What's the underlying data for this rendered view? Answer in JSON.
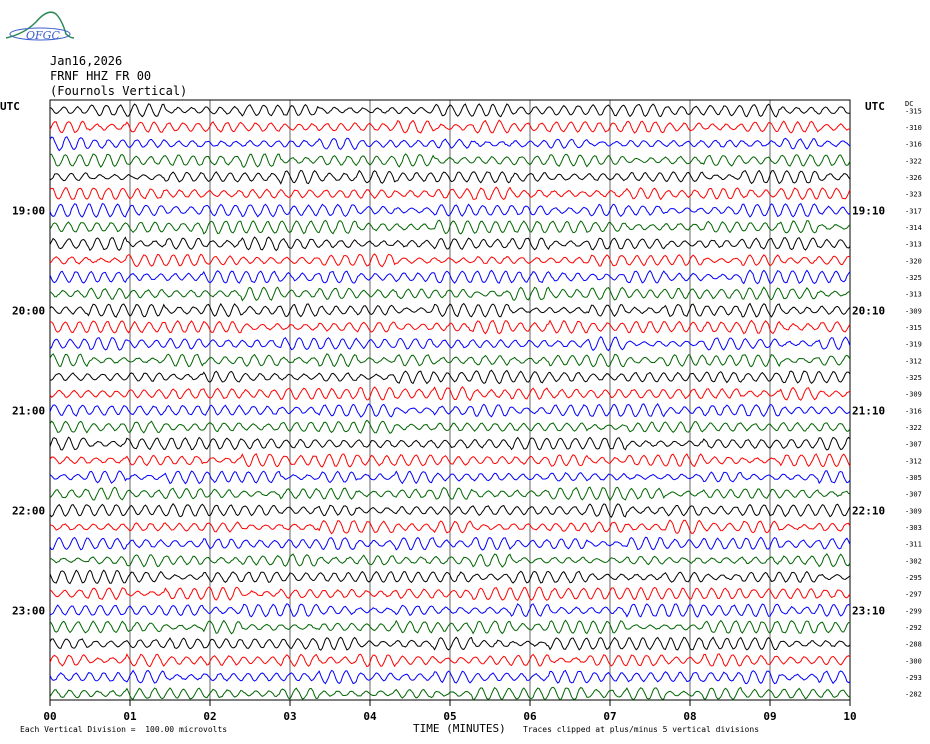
{
  "logo": {
    "text": "OFGC"
  },
  "header": {
    "date": "Jan16,2026",
    "station": "FRNF HHZ FR 00",
    "location": "(Fournols Vertical)"
  },
  "left_axis_label": "UTC",
  "right_axis_label": "UTC",
  "dc_label": "DC",
  "footer": {
    "scale_note": "Each Vertical Division =  100.00 microvolts",
    "xlabel": "TIME (MINUTES)",
    "clip_note": "Traces clipped at plus/minus 5 vertical divisions"
  },
  "chart_data": {
    "type": "line",
    "title": "FRNF HHZ FR 00",
    "xlabel": "TIME (MINUTES)",
    "xlim": [
      0,
      10
    ],
    "x_ticks": [
      "00",
      "01",
      "02",
      "03",
      "04",
      "05",
      "06",
      "07",
      "08",
      "09",
      "10"
    ],
    "left_time_labels": [
      {
        "row": 6,
        "label": "19:00"
      },
      {
        "row": 12,
        "label": "20:00"
      },
      {
        "row": 18,
        "label": "21:00"
      },
      {
        "row": 24,
        "label": "22:00"
      },
      {
        "row": 30,
        "label": "23:00"
      }
    ],
    "right_time_labels": [
      {
        "row": 6,
        "label": "19:10"
      },
      {
        "row": 12,
        "label": "20:10"
      },
      {
        "row": 18,
        "label": "21:10"
      },
      {
        "row": 24,
        "label": "22:10"
      },
      {
        "row": 30,
        "label": "23:10"
      }
    ],
    "trace_colors": [
      "#000000",
      "#ff0000",
      "#0000ff",
      "#006400"
    ],
    "dc_offsets": [
      -315,
      -310,
      -316,
      -322,
      -326,
      -323,
      -317,
      -314,
      -313,
      -320,
      -325,
      -313,
      -309,
      -315,
      -319,
      -312,
      -325,
      -309,
      -316,
      -322,
      -307,
      -312,
      -305,
      -307,
      -309,
      -303,
      -311,
      -302,
      -295,
      -297,
      -299,
      -292,
      -288,
      -300,
      -293,
      -282
    ],
    "grid": true
  }
}
